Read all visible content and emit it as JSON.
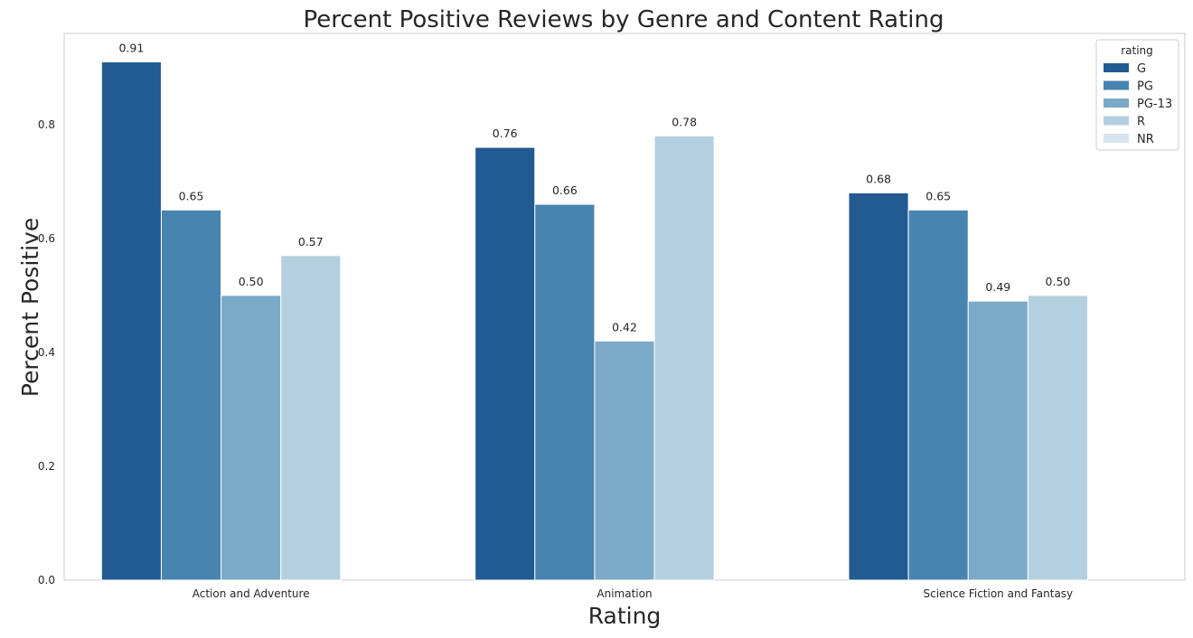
{
  "chart_data": {
    "type": "bar",
    "title": "Percent Positive Reviews by Genre and Content Rating",
    "xlabel": "Rating",
    "ylabel": "Percent Positive",
    "categories": [
      "Action and Adventure",
      "Animation",
      "Science Fiction and Fantasy"
    ],
    "series": [
      {
        "name": "G",
        "color": "#225b91",
        "values": [
          0.91,
          0.76,
          0.68
        ]
      },
      {
        "name": "PG",
        "color": "#4884b0",
        "values": [
          0.65,
          0.66,
          0.65
        ]
      },
      {
        "name": "PG-13",
        "color": "#7baac8",
        "values": [
          0.5,
          0.42,
          0.49
        ]
      },
      {
        "name": "R",
        "color": "#b4cfe0",
        "values": [
          0.57,
          0.78,
          0.5
        ]
      },
      {
        "name": "NR",
        "color": "#d6e4f0",
        "values": [
          null,
          null,
          null
        ]
      }
    ],
    "data_labels": [
      [
        "0.91",
        "0.76",
        "0.68"
      ],
      [
        "0.65",
        "0.66",
        "0.65"
      ],
      [
        "0.50",
        "0.42",
        "0.49"
      ],
      [
        "0.57",
        "0.78",
        "0.50"
      ],
      [
        null,
        null,
        null
      ]
    ],
    "ylim": [
      0,
      0.96
    ],
    "yticks": [
      0.0,
      0.2,
      0.4,
      0.6,
      0.8
    ],
    "ytick_labels": [
      "0.0",
      "0.2",
      "0.4",
      "0.6",
      "0.8"
    ],
    "grid": false,
    "legend": {
      "title": "rating",
      "placement": "top-right"
    }
  }
}
